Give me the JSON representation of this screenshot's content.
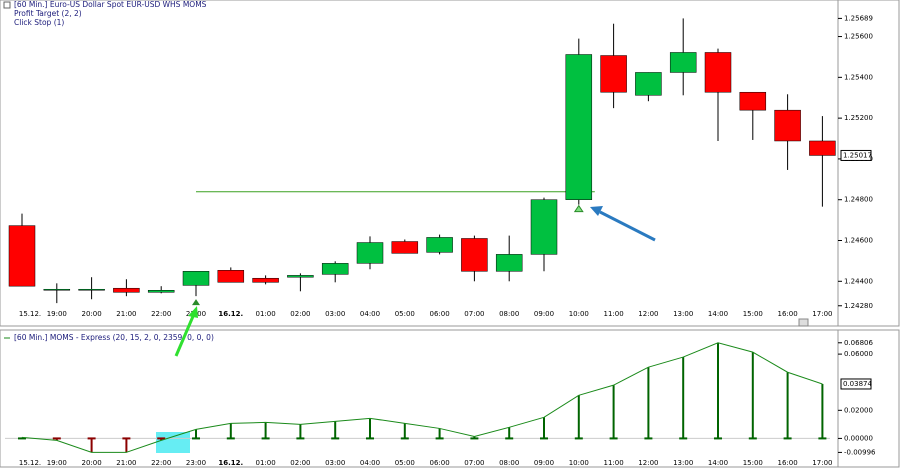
{
  "chart_data": [
    {
      "type": "candlestick",
      "title": "[60 Min.] Euro-US Dollar Spot   EUR-USD WHS MOMS",
      "annotations": [
        "Profit Target  (2, 2)",
        "Click Stop  (1)"
      ],
      "categories": [
        "15.12.",
        "19:00",
        "20:00",
        "21:00",
        "22:00",
        "23:00",
        "16.12.",
        "01:00",
        "02:00",
        "03:00",
        "04:00",
        "05:00",
        "06:00",
        "07:00",
        "08:00",
        "09:00",
        "10:00",
        "11:00",
        "12:00",
        "13:00",
        "14:00",
        "15:00",
        "16:00",
        "17:00"
      ],
      "open": [
        1.24673,
        1.24361,
        1.24361,
        1.24366,
        1.24346,
        1.2438,
        1.24454,
        1.24415,
        1.2442,
        1.24434,
        1.24488,
        1.24595,
        1.24542,
        1.2461,
        1.24449,
        1.24532,
        1.248,
        1.25507,
        1.25312,
        1.25424,
        1.25522,
        1.25327,
        1.25239,
        1.25088
      ],
      "high": [
        1.24732,
        1.2439,
        1.2442,
        1.2441,
        1.24376,
        1.24449,
        1.24468,
        1.24429,
        1.24439,
        1.24498,
        1.2462,
        1.24605,
        1.24629,
        1.24624,
        1.24624,
        1.2481,
        1.2559,
        1.25663,
        1.25424,
        1.25689,
        1.25541,
        1.25327,
        1.25317,
        1.2521
      ],
      "low": [
        1.24376,
        1.24293,
        1.24312,
        1.24327,
        1.24341,
        1.24327,
        1.24395,
        1.24385,
        1.24351,
        1.24395,
        1.24459,
        1.24537,
        1.24532,
        1.244,
        1.244,
        1.24449,
        1.24776,
        1.25249,
        1.25283,
        1.25312,
        1.25088,
        1.25093,
        1.24946,
        1.24766
      ],
      "close": [
        1.24376,
        1.24361,
        1.24361,
        1.24346,
        1.24356,
        1.24449,
        1.24395,
        1.24395,
        1.24429,
        1.24488,
        1.2459,
        1.24537,
        1.24615,
        1.24449,
        1.24532,
        1.248,
        1.25512,
        1.25327,
        1.25424,
        1.25522,
        1.25327,
        1.25239,
        1.25088,
        1.25017
      ],
      "up_color": "#00c040",
      "down_color": "#ff0000",
      "profit_target_line": 1.24839,
      "line_color": "#3aa020",
      "last_value": {
        "value": 1.25017,
        "label": "1.25017"
      },
      "ylim": [
        1.2422,
        1.2574
      ],
      "yticks": [
        1.25689,
        {
          "value": 1.256,
          "label": "1.25600"
        },
        {
          "value": 1.254,
          "label": "1.25400"
        },
        {
          "value": 1.252,
          "label": "1.25200"
        },
        {
          "value": 1.25,
          "label": "1.25000"
        },
        {
          "value": 1.248,
          "label": "1.24800"
        },
        {
          "value": 1.246,
          "label": "1.24600"
        },
        {
          "value": 1.244,
          "label": "1.24400"
        },
        {
          "value": 1.2428,
          "label": "1.24280"
        }
      ]
    },
    {
      "type": "histogram-line",
      "title": "[60 Min.] MOMS - Express  (20, 15, 2, 0, 2359, 0, 0, 0)",
      "categories": [
        "15.12.",
        "19:00",
        "20:00",
        "21:00",
        "22:00",
        "23:00",
        "16.12.",
        "01:00",
        "02:00",
        "03:00",
        "04:00",
        "05:00",
        "06:00",
        "07:00",
        "08:00",
        "09:00",
        "10:00",
        "11:00",
        "12:00",
        "13:00",
        "14:00",
        "15:00",
        "16:00",
        "17:00"
      ],
      "values": [
        0.0007,
        -0.0014,
        -0.0099,
        -0.0099,
        -0.0014,
        0.0064,
        0.0107,
        0.0114,
        0.01,
        0.0121,
        0.0143,
        0.0107,
        0.0071,
        0.0014,
        0.0079,
        0.015,
        0.0307,
        0.0379,
        0.0507,
        0.0579,
        0.06806,
        0.0614,
        0.0471,
        0.03874
      ],
      "color": "#1a8a1a",
      "bar_color": "#006400",
      "negative_color": "#8b0000",
      "last_value": {
        "value": 0.03874,
        "label": "0.03874"
      },
      "ylim": [
        -0.0175,
        0.0736
      ],
      "yticks": [
        {
          "value": 0.06806,
          "label": "0.06806"
        },
        {
          "value": 0.06,
          "label": "0.06000"
        },
        {
          "value": 0.02,
          "label": "0.02000"
        },
        {
          "value": 0,
          "label": "0.00000"
        },
        {
          "value": -0.00996,
          "label": "-0.00996"
        }
      ]
    }
  ]
}
